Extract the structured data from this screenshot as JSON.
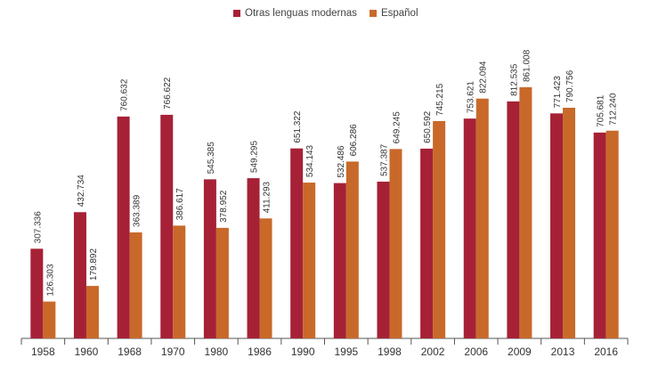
{
  "chart_data": {
    "type": "bar",
    "categories": [
      "1958",
      "1960",
      "1968",
      "1970",
      "1980",
      "1986",
      "1990",
      "1995",
      "1998",
      "2002",
      "2006",
      "2009",
      "2013",
      "2016"
    ],
    "series": [
      {
        "name": "Otras lenguas modernas",
        "color": "#a62136",
        "values": [
          307336,
          432734,
          760632,
          766622,
          545385,
          549295,
          651322,
          532486,
          537387,
          650592,
          753621,
          812535,
          771423,
          705681
        ],
        "labels": [
          "307.336",
          "432.734",
          "760.632",
          "766.622",
          "545.385",
          "549.295",
          "651.322",
          "532.486",
          "537.387",
          "650.592",
          "753.621",
          "812.535",
          "771.423",
          "705.681"
        ]
      },
      {
        "name": "Español",
        "color": "#c8692a",
        "values": [
          126303,
          179892,
          363389,
          386617,
          378952,
          411293,
          534143,
          606286,
          649245,
          745215,
          822094,
          861008,
          790756,
          712240
        ],
        "labels": [
          "126.303",
          "179.892",
          "363.389",
          "386.617",
          "378.952",
          "411.293",
          "534.143",
          "606.286",
          "649.245",
          "745.215",
          "822.094",
          "861.008",
          "790.756",
          "712.240"
        ]
      }
    ],
    "ylim": [
      0,
      1000000
    ],
    "grid": false,
    "legend_position": "top-center"
  }
}
